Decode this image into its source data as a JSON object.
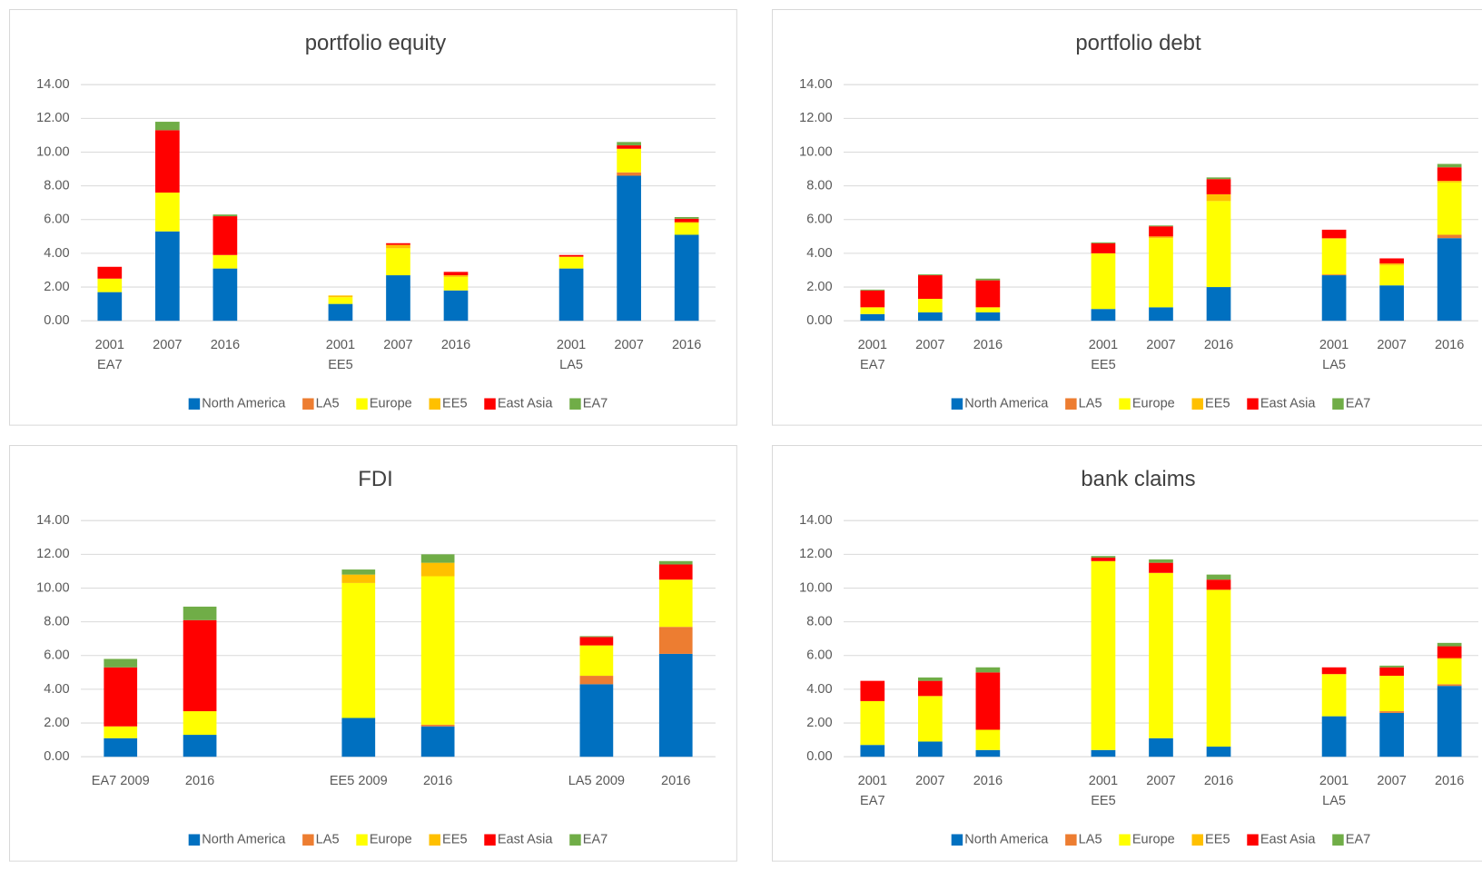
{
  "chart_data": [
    {
      "type": "bar",
      "stacked": true,
      "title": "portfolio equity",
      "categories": [
        "2001",
        "2007",
        "2016",
        null,
        "2001",
        "2007",
        "2016",
        null,
        "2001",
        "2007",
        "2016"
      ],
      "category_groups": [
        "EA7",
        "EE5",
        "LA5"
      ],
      "ylim": [
        0,
        14
      ],
      "yticks": [
        {
          "value": 0,
          "label": "0.00"
        },
        {
          "value": 2,
          "label": "2.00"
        },
        {
          "value": 4,
          "label": "4.00"
        },
        {
          "value": 6,
          "label": "6.00"
        },
        {
          "value": 8,
          "label": "8.00"
        },
        {
          "value": 10,
          "label": "10.00"
        },
        {
          "value": 12,
          "label": "12.00"
        },
        {
          "value": 14,
          "label": "14.00"
        }
      ],
      "grid": true,
      "series": [
        {
          "name": "North America",
          "color": "#0070c0",
          "values": [
            1.7,
            5.3,
            3.1,
            null,
            1.0,
            2.7,
            1.8,
            null,
            3.1,
            8.6,
            5.1
          ]
        },
        {
          "name": "LA5",
          "color": "#ed7d31",
          "values": [
            0,
            0,
            0,
            null,
            0,
            0,
            0,
            null,
            0,
            0.2,
            0
          ]
        },
        {
          "name": "Europe",
          "color": "#ffff00",
          "values": [
            0.8,
            2.3,
            0.8,
            null,
            0.4,
            1.6,
            0.8,
            null,
            0.7,
            1.4,
            0.7
          ]
        },
        {
          "name": "EE5",
          "color": "#ffc000",
          "values": [
            0,
            0,
            0,
            null,
            0.1,
            0.2,
            0.1,
            null,
            0,
            0,
            0.05
          ]
        },
        {
          "name": "East Asia",
          "color": "#ff0000",
          "values": [
            0.7,
            3.7,
            2.3,
            null,
            0,
            0.1,
            0.2,
            null,
            0.1,
            0.2,
            0.2
          ]
        },
        {
          "name": "EA7",
          "color": "#70ad47",
          "values": [
            0,
            0.5,
            0.1,
            null,
            0,
            0,
            0,
            null,
            0,
            0.2,
            0.1
          ]
        }
      ]
    },
    {
      "type": "bar",
      "stacked": true,
      "title": "portfolio debt",
      "categories": [
        "2001",
        "2007",
        "2016",
        null,
        "2001",
        "2007",
        "2016",
        null,
        "2001",
        "2007",
        "2016"
      ],
      "category_groups": [
        "EA7",
        "EE5",
        "LA5"
      ],
      "ylim": [
        0,
        14
      ],
      "yticks": [
        {
          "value": 0,
          "label": "0.00"
        },
        {
          "value": 2,
          "label": "2.00"
        },
        {
          "value": 4,
          "label": "4.00"
        },
        {
          "value": 6,
          "label": "6.00"
        },
        {
          "value": 8,
          "label": "8.00"
        },
        {
          "value": 10,
          "label": "10.00"
        },
        {
          "value": 12,
          "label": "12.00"
        },
        {
          "value": 14,
          "label": "14.00"
        }
      ],
      "grid": true,
      "series": [
        {
          "name": "North America",
          "color": "#0070c0",
          "values": [
            0.4,
            0.5,
            0.5,
            null,
            0.7,
            0.8,
            2.0,
            null,
            2.7,
            2.1,
            4.9
          ]
        },
        {
          "name": "LA5",
          "color": "#ed7d31",
          "values": [
            0,
            0,
            0,
            null,
            0,
            0,
            0,
            null,
            0.05,
            0,
            0.2
          ]
        },
        {
          "name": "Europe",
          "color": "#ffff00",
          "values": [
            0.4,
            0.8,
            0.3,
            null,
            3.3,
            4.1,
            5.1,
            null,
            2.1,
            1.2,
            3.1
          ]
        },
        {
          "name": "EE5",
          "color": "#ffc000",
          "values": [
            0,
            0,
            0,
            null,
            0,
            0.1,
            0.4,
            null,
            0.05,
            0.1,
            0.1
          ]
        },
        {
          "name": "East Asia",
          "color": "#ff0000",
          "values": [
            1.0,
            1.4,
            1.6,
            null,
            0.6,
            0.6,
            0.9,
            null,
            0.5,
            0.3,
            0.8
          ]
        },
        {
          "name": "EA7",
          "color": "#70ad47",
          "values": [
            0.05,
            0.05,
            0.1,
            null,
            0.05,
            0.05,
            0.1,
            null,
            0,
            0,
            0.2
          ]
        }
      ]
    },
    {
      "type": "bar",
      "stacked": true,
      "title": "FDI",
      "categories": [
        "EA7 2009",
        "2016",
        null,
        "EE5 2009",
        "2016",
        null,
        "LA5 2009",
        "2016"
      ],
      "ylim": [
        0,
        14
      ],
      "yticks": [
        {
          "value": 0,
          "label": "0.00"
        },
        {
          "value": 2,
          "label": "2.00"
        },
        {
          "value": 4,
          "label": "4.00"
        },
        {
          "value": 6,
          "label": "6.00"
        },
        {
          "value": 8,
          "label": "8.00"
        },
        {
          "value": 10,
          "label": "10.00"
        },
        {
          "value": 12,
          "label": "12.00"
        },
        {
          "value": 14,
          "label": "14.00"
        }
      ],
      "grid": true,
      "series": [
        {
          "name": "North America",
          "color": "#0070c0",
          "values": [
            1.1,
            1.3,
            null,
            2.3,
            1.8,
            null,
            4.3,
            6.1
          ]
        },
        {
          "name": "LA5",
          "color": "#ed7d31",
          "values": [
            0,
            0,
            null,
            0,
            0.1,
            null,
            0.5,
            1.6
          ]
        },
        {
          "name": "Europe",
          "color": "#ffff00",
          "values": [
            0.7,
            1.4,
            null,
            8.0,
            8.8,
            null,
            1.8,
            2.8
          ]
        },
        {
          "name": "EE5",
          "color": "#ffc000",
          "values": [
            0,
            0,
            null,
            0.5,
            0.8,
            null,
            0,
            0
          ]
        },
        {
          "name": "East Asia",
          "color": "#ff0000",
          "values": [
            3.5,
            5.4,
            null,
            0,
            0,
            null,
            0.5,
            0.9
          ]
        },
        {
          "name": "EA7",
          "color": "#70ad47",
          "values": [
            0.5,
            0.8,
            null,
            0.3,
            0.5,
            null,
            0.05,
            0.2
          ]
        }
      ]
    },
    {
      "type": "bar",
      "stacked": true,
      "title": "bank claims",
      "categories": [
        "2001",
        "2007",
        "2016",
        null,
        "2001",
        "2007",
        "2016",
        null,
        "2001",
        "2007",
        "2016"
      ],
      "category_groups": [
        "EA7",
        "EE5",
        "LA5"
      ],
      "ylim": [
        0,
        14
      ],
      "yticks": [
        {
          "value": 0,
          "label": "0.00"
        },
        {
          "value": 2,
          "label": "2.00"
        },
        {
          "value": 4,
          "label": "4.00"
        },
        {
          "value": 6,
          "label": "6.00"
        },
        {
          "value": 8,
          "label": "8.00"
        },
        {
          "value": 10,
          "label": "10.00"
        },
        {
          "value": 12,
          "label": "12.00"
        },
        {
          "value": 14,
          "label": "14.00"
        }
      ],
      "grid": true,
      "series": [
        {
          "name": "North America",
          "color": "#0070c0",
          "values": [
            0.7,
            0.9,
            0.4,
            null,
            0.4,
            1.1,
            0.6,
            null,
            2.4,
            2.6,
            4.2
          ]
        },
        {
          "name": "LA5",
          "color": "#ed7d31",
          "values": [
            0,
            0,
            0,
            null,
            0,
            0,
            0,
            null,
            0,
            0.1,
            0.1
          ]
        },
        {
          "name": "Europe",
          "color": "#ffff00",
          "values": [
            2.6,
            2.7,
            1.2,
            null,
            11.2,
            9.8,
            9.3,
            null,
            2.5,
            2.1,
            1.5
          ]
        },
        {
          "name": "EE5",
          "color": "#ffc000",
          "values": [
            0,
            0,
            0,
            null,
            0,
            0,
            0,
            null,
            0,
            0,
            0.05
          ]
        },
        {
          "name": "East Asia",
          "color": "#ff0000",
          "values": [
            1.2,
            0.9,
            3.4,
            null,
            0.2,
            0.6,
            0.6,
            null,
            0.4,
            0.5,
            0.7
          ]
        },
        {
          "name": "EA7",
          "color": "#70ad47",
          "values": [
            0,
            0.2,
            0.3,
            null,
            0.1,
            0.2,
            0.3,
            null,
            0,
            0.1,
            0.2
          ]
        }
      ]
    }
  ]
}
